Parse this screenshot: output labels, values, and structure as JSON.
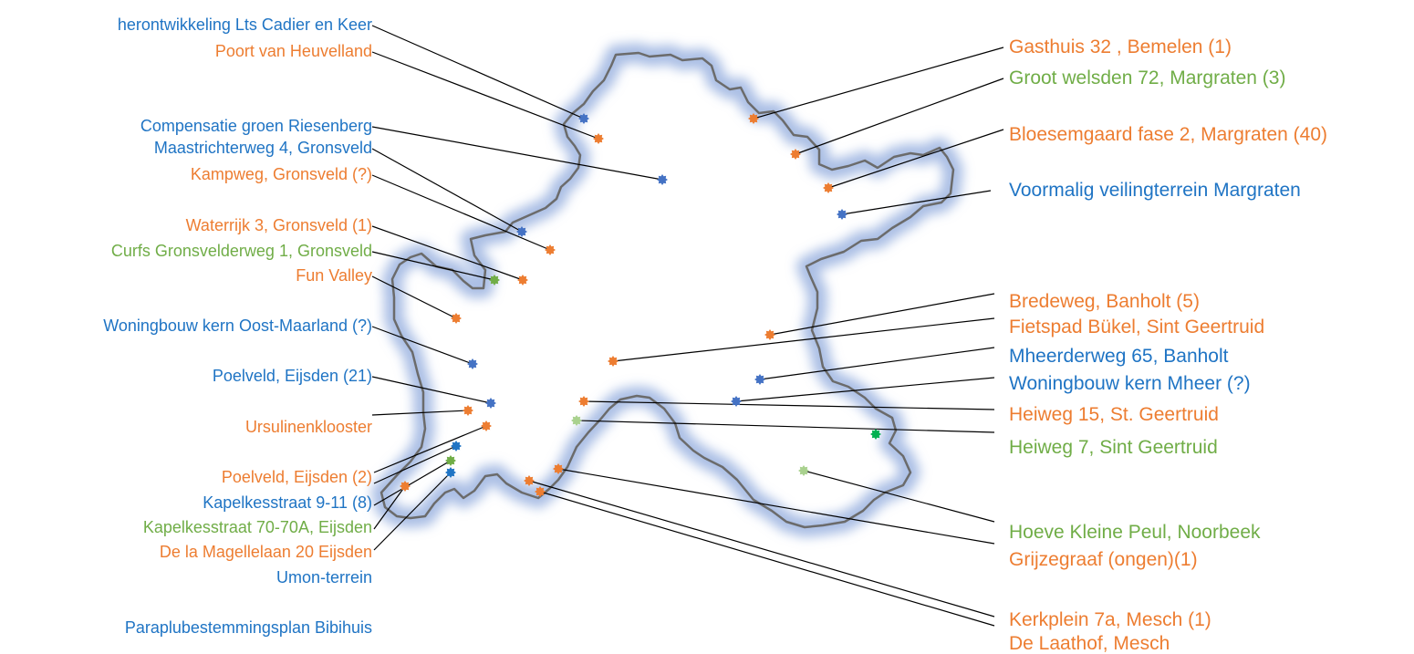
{
  "colors": {
    "blue": "#1f74c4",
    "blue_marker": "#4472c4",
    "orange": "#ed7d31",
    "green": "#70ad47",
    "green_marker": "#00b050",
    "light_green_marker": "#a9d18e",
    "boundary": "#6b6b6b",
    "glow": "#8faadc"
  },
  "map": {
    "region": "municipality-boundary",
    "labels_left": [
      {
        "text": "herontwikkeling Lts Cadier en Keer",
        "color": "blue"
      },
      {
        "text": "Poort van Heuvelland",
        "color": "orange"
      },
      {
        "text": "Compensatie groen Riesenberg",
        "color": "blue"
      },
      {
        "text": "Maastrichterweg 4, Gronsveld",
        "color": "blue"
      },
      {
        "text": "Kampweg, Gronsveld (?)",
        "color": "orange"
      },
      {
        "text": "Waterrijk 3, Gronsveld (1)",
        "color": "orange"
      },
      {
        "text": "Curfs Gronsvelderweg 1, Gronsveld",
        "color": "green"
      },
      {
        "text": "Fun Valley",
        "color": "orange"
      },
      {
        "text": "Woningbouw kern Oost-Maarland (?)",
        "color": "blue"
      },
      {
        "text": "Poelveld, Eijsden (21)",
        "color": "blue"
      },
      {
        "text": "Ursulinenklooster",
        "color": "orange"
      },
      {
        "text": "Poelveld, Eijsden (2)",
        "color": "orange"
      },
      {
        "text": "Kapelkesstraat 9-11 (8)",
        "color": "blue"
      },
      {
        "text": "Kapelkesstraat 70-70A, Eijsden",
        "color": "green"
      },
      {
        "text": "De la Magellelaan 20 Eijsden",
        "color": "orange"
      },
      {
        "text": "Umon-terrein",
        "color": "blue"
      },
      {
        "text": "Paraplubestemmingsplan Bibihuis",
        "color": "blue"
      }
    ],
    "labels_right": [
      {
        "text": "Gasthuis 32 , Bemelen (1)",
        "color": "orange"
      },
      {
        "text": "Groot welsden 72, Margraten (3)",
        "color": "green"
      },
      {
        "text": "Bloesemgaard fase 2, Margraten (40)",
        "color": "orange"
      },
      {
        "text": "Voormalig veilingterrein Margraten",
        "color": "blue"
      },
      {
        "text": "Bredeweg, Banholt (5)",
        "color": "orange"
      },
      {
        "text": "Fietspad Bükel, Sint Geertruid",
        "color": "orange"
      },
      {
        "text": "Mheerderweg 65, Banholt",
        "color": "blue"
      },
      {
        "text": "Woningbouw kern Mheer (?)",
        "color": "blue"
      },
      {
        "text": "Heiweg 15, St. Geertruid",
        "color": "orange"
      },
      {
        "text": "Heiweg 7, Sint Geertruid",
        "color": "green"
      },
      {
        "text": "Hoeve Kleine Peul, Noorbeek",
        "color": "green"
      },
      {
        "text": "Grijzegraaf (ongen)(1)",
        "color": "orange"
      },
      {
        "text": "Kerkplein 7a, Mesch (1)",
        "color": "orange"
      },
      {
        "text": "De Laathof, Mesch",
        "color": "orange"
      }
    ],
    "markers": [
      {
        "name": "lts-cadier",
        "color": "blue_marker"
      },
      {
        "name": "poort-heuvelland",
        "color": "orange"
      },
      {
        "name": "riesenberg",
        "color": "blue_marker"
      },
      {
        "name": "maastrichterweg",
        "color": "blue_marker"
      },
      {
        "name": "kampweg",
        "color": "orange"
      },
      {
        "name": "waterrijk",
        "color": "orange"
      },
      {
        "name": "curfs",
        "color": "green"
      },
      {
        "name": "fun-valley",
        "color": "orange"
      },
      {
        "name": "oost-maarland",
        "color": "blue_marker"
      },
      {
        "name": "poelveld-21",
        "color": "blue_marker"
      },
      {
        "name": "ursulinenklooster",
        "color": "orange"
      },
      {
        "name": "poelveld-2",
        "color": "orange"
      },
      {
        "name": "kapelkes-9",
        "color": "blue"
      },
      {
        "name": "kapelkes-70",
        "color": "green"
      },
      {
        "name": "magellelaan",
        "color": "orange"
      },
      {
        "name": "umon",
        "color": "blue"
      },
      {
        "name": "gasthuis",
        "color": "orange"
      },
      {
        "name": "groot-welsden",
        "color": "orange"
      },
      {
        "name": "bloesemgaard",
        "color": "orange"
      },
      {
        "name": "veilingterrein",
        "color": "blue_marker"
      },
      {
        "name": "bredeweg",
        "color": "orange"
      },
      {
        "name": "fietspad-bukel",
        "color": "orange"
      },
      {
        "name": "mheerderweg",
        "color": "blue_marker"
      },
      {
        "name": "kern-mheer",
        "color": "blue_marker"
      },
      {
        "name": "heiweg-15",
        "color": "orange"
      },
      {
        "name": "heiweg-7",
        "color": "light_green_marker"
      },
      {
        "name": "noorbeek-green",
        "color": "green_marker"
      },
      {
        "name": "hoeve-kleine-peul",
        "color": "light_green_marker"
      },
      {
        "name": "grijzegraaf",
        "color": "orange"
      },
      {
        "name": "kerkplein",
        "color": "orange"
      },
      {
        "name": "laathof",
        "color": "orange"
      }
    ]
  }
}
